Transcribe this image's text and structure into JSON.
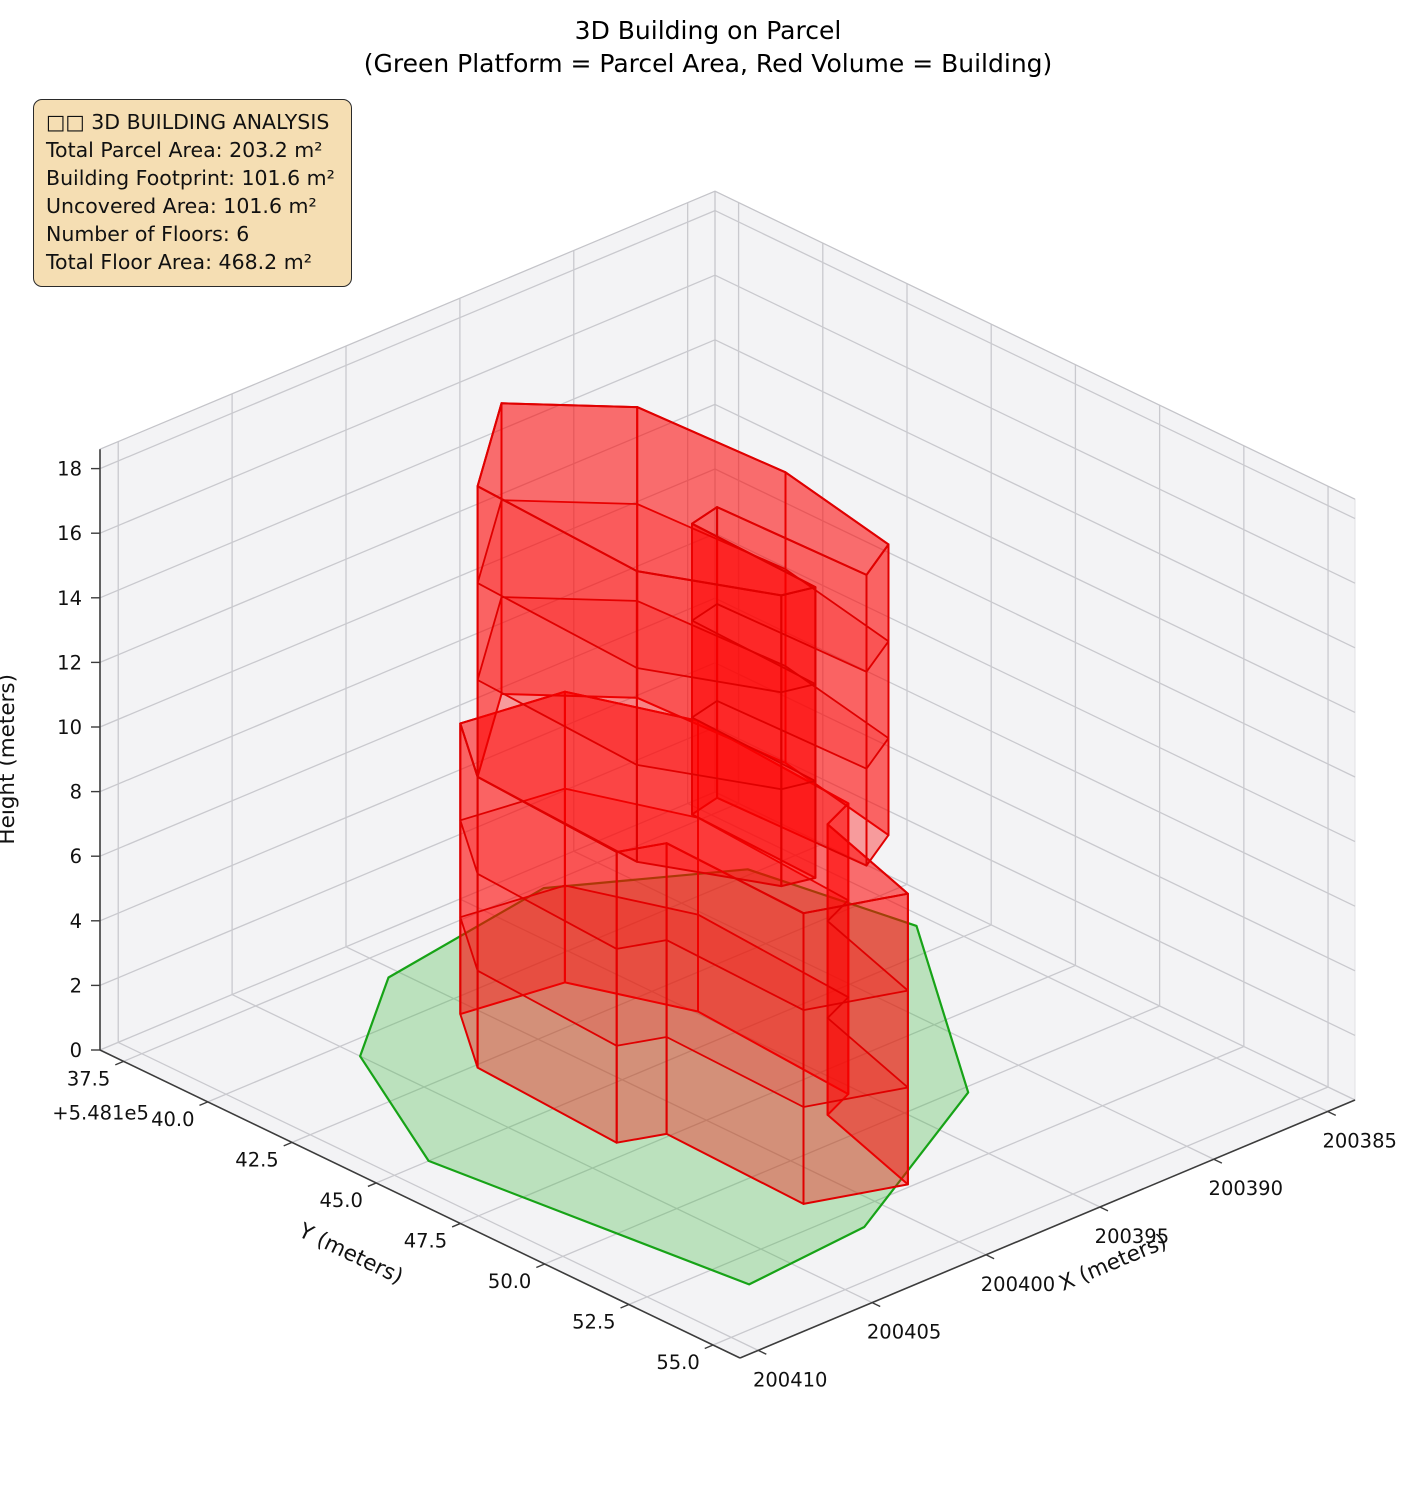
{
  "figure": {
    "background": "#ffffff"
  },
  "chart_data": {
    "type": "3d-building-extrusion",
    "title": "3D Building on Parcel",
    "subtitle": "(Green Platform = Parcel Area, Red Volume = Building)",
    "legend": "none",
    "grid": true,
    "axes": {
      "x": {
        "label": "X (meters)",
        "ticks": [
          200385,
          200390,
          200395,
          200400,
          200405,
          200410
        ],
        "range": [
          200383.8,
          200410.8
        ]
      },
      "y": {
        "label": "Y (meters)",
        "offset_text": "+5.481e5",
        "offset_value": 548100,
        "ticks": [
          37.5,
          40.0,
          42.5,
          45.0,
          47.5,
          50.0,
          52.5,
          55.0
        ],
        "tick_labels": [
          "37.5",
          "40.0",
          "42.5",
          "45.0",
          "47.5",
          "50.0",
          "52.5",
          "55.0"
        ],
        "range_absolute": [
          548136.8,
          548155.8
        ]
      },
      "z": {
        "label": "Height (meters)",
        "ticks": [
          0,
          2,
          4,
          6,
          8,
          10,
          12,
          14,
          16,
          18
        ],
        "range": [
          0,
          18.6
        ]
      }
    },
    "parcel": {
      "color": "#3cb83c",
      "edge_color": "#17a317",
      "area_m2": 203.2,
      "vertices": [
        [
          200408.5,
          548145.0
        ],
        [
          200407.0,
          548153.5
        ],
        [
          200401.5,
          548153.2
        ],
        [
          200392.5,
          548150.2
        ],
        [
          200385.6,
          548144.0
        ],
        [
          200386.8,
          548139.8
        ],
        [
          200392.5,
          548137.6
        ],
        [
          200400.5,
          548138.4
        ],
        [
          200405.0,
          548140.6
        ]
      ]
    },
    "building": {
      "color": "#ff0000",
      "edge_color": "#e00000",
      "floors": 6,
      "floor_height_m": 3,
      "footprint_area_m2": 101.6,
      "uncovered_area_m2": 101.6,
      "total_floor_area_m2": 468.2,
      "total_height_m": 18,
      "tiers": [
        {
          "z0": 0,
          "z1": 9,
          "footprint": [
            [
              200402.8,
              548142.6
            ],
            [
              200403.2,
              548147.0
            ],
            [
              200401.6,
              548147.4
            ],
            [
              200401.8,
              548151.6
            ],
            [
              200398.4,
              548152.4
            ],
            [
              200396.9,
              548149.0
            ],
            [
              200395.4,
              548148.6
            ],
            [
              200394.9,
              548143.8
            ],
            [
              200396.6,
              548141.0
            ],
            [
              200400.6,
              548140.6
            ]
          ]
        },
        {
          "z0": 9,
          "z1": 18,
          "footprint": [
            [
              200402.8,
              548142.6
            ],
            [
              200403.2,
              548147.6
            ],
            [
              200401.0,
              548150.4
            ],
            [
              200399.8,
              548150.6
            ],
            [
              200399.6,
              548146.8
            ],
            [
              200398.2,
              548146.6
            ],
            [
              200398.0,
              548150.9
            ],
            [
              200396.0,
              548150.2
            ],
            [
              200394.9,
              548146.4
            ],
            [
              200395.2,
              548142.2
            ],
            [
              200398.2,
              548140.2
            ]
          ]
        }
      ]
    },
    "info_box": {
      "background": "#f5deb3",
      "title": "□□ 3D BUILDING ANALYSIS",
      "rows": [
        {
          "label": "Total Parcel Area:",
          "value": "203.2 m²"
        },
        {
          "label": "Building Footprint:",
          "value": "101.6 m²"
        },
        {
          "label": "Uncovered Area:",
          "value": "101.6 m²"
        },
        {
          "label": "Number of Floors:",
          "value": "6"
        },
        {
          "label": "Total Floor Area:",
          "value": "468.2 m²"
        }
      ]
    }
  }
}
